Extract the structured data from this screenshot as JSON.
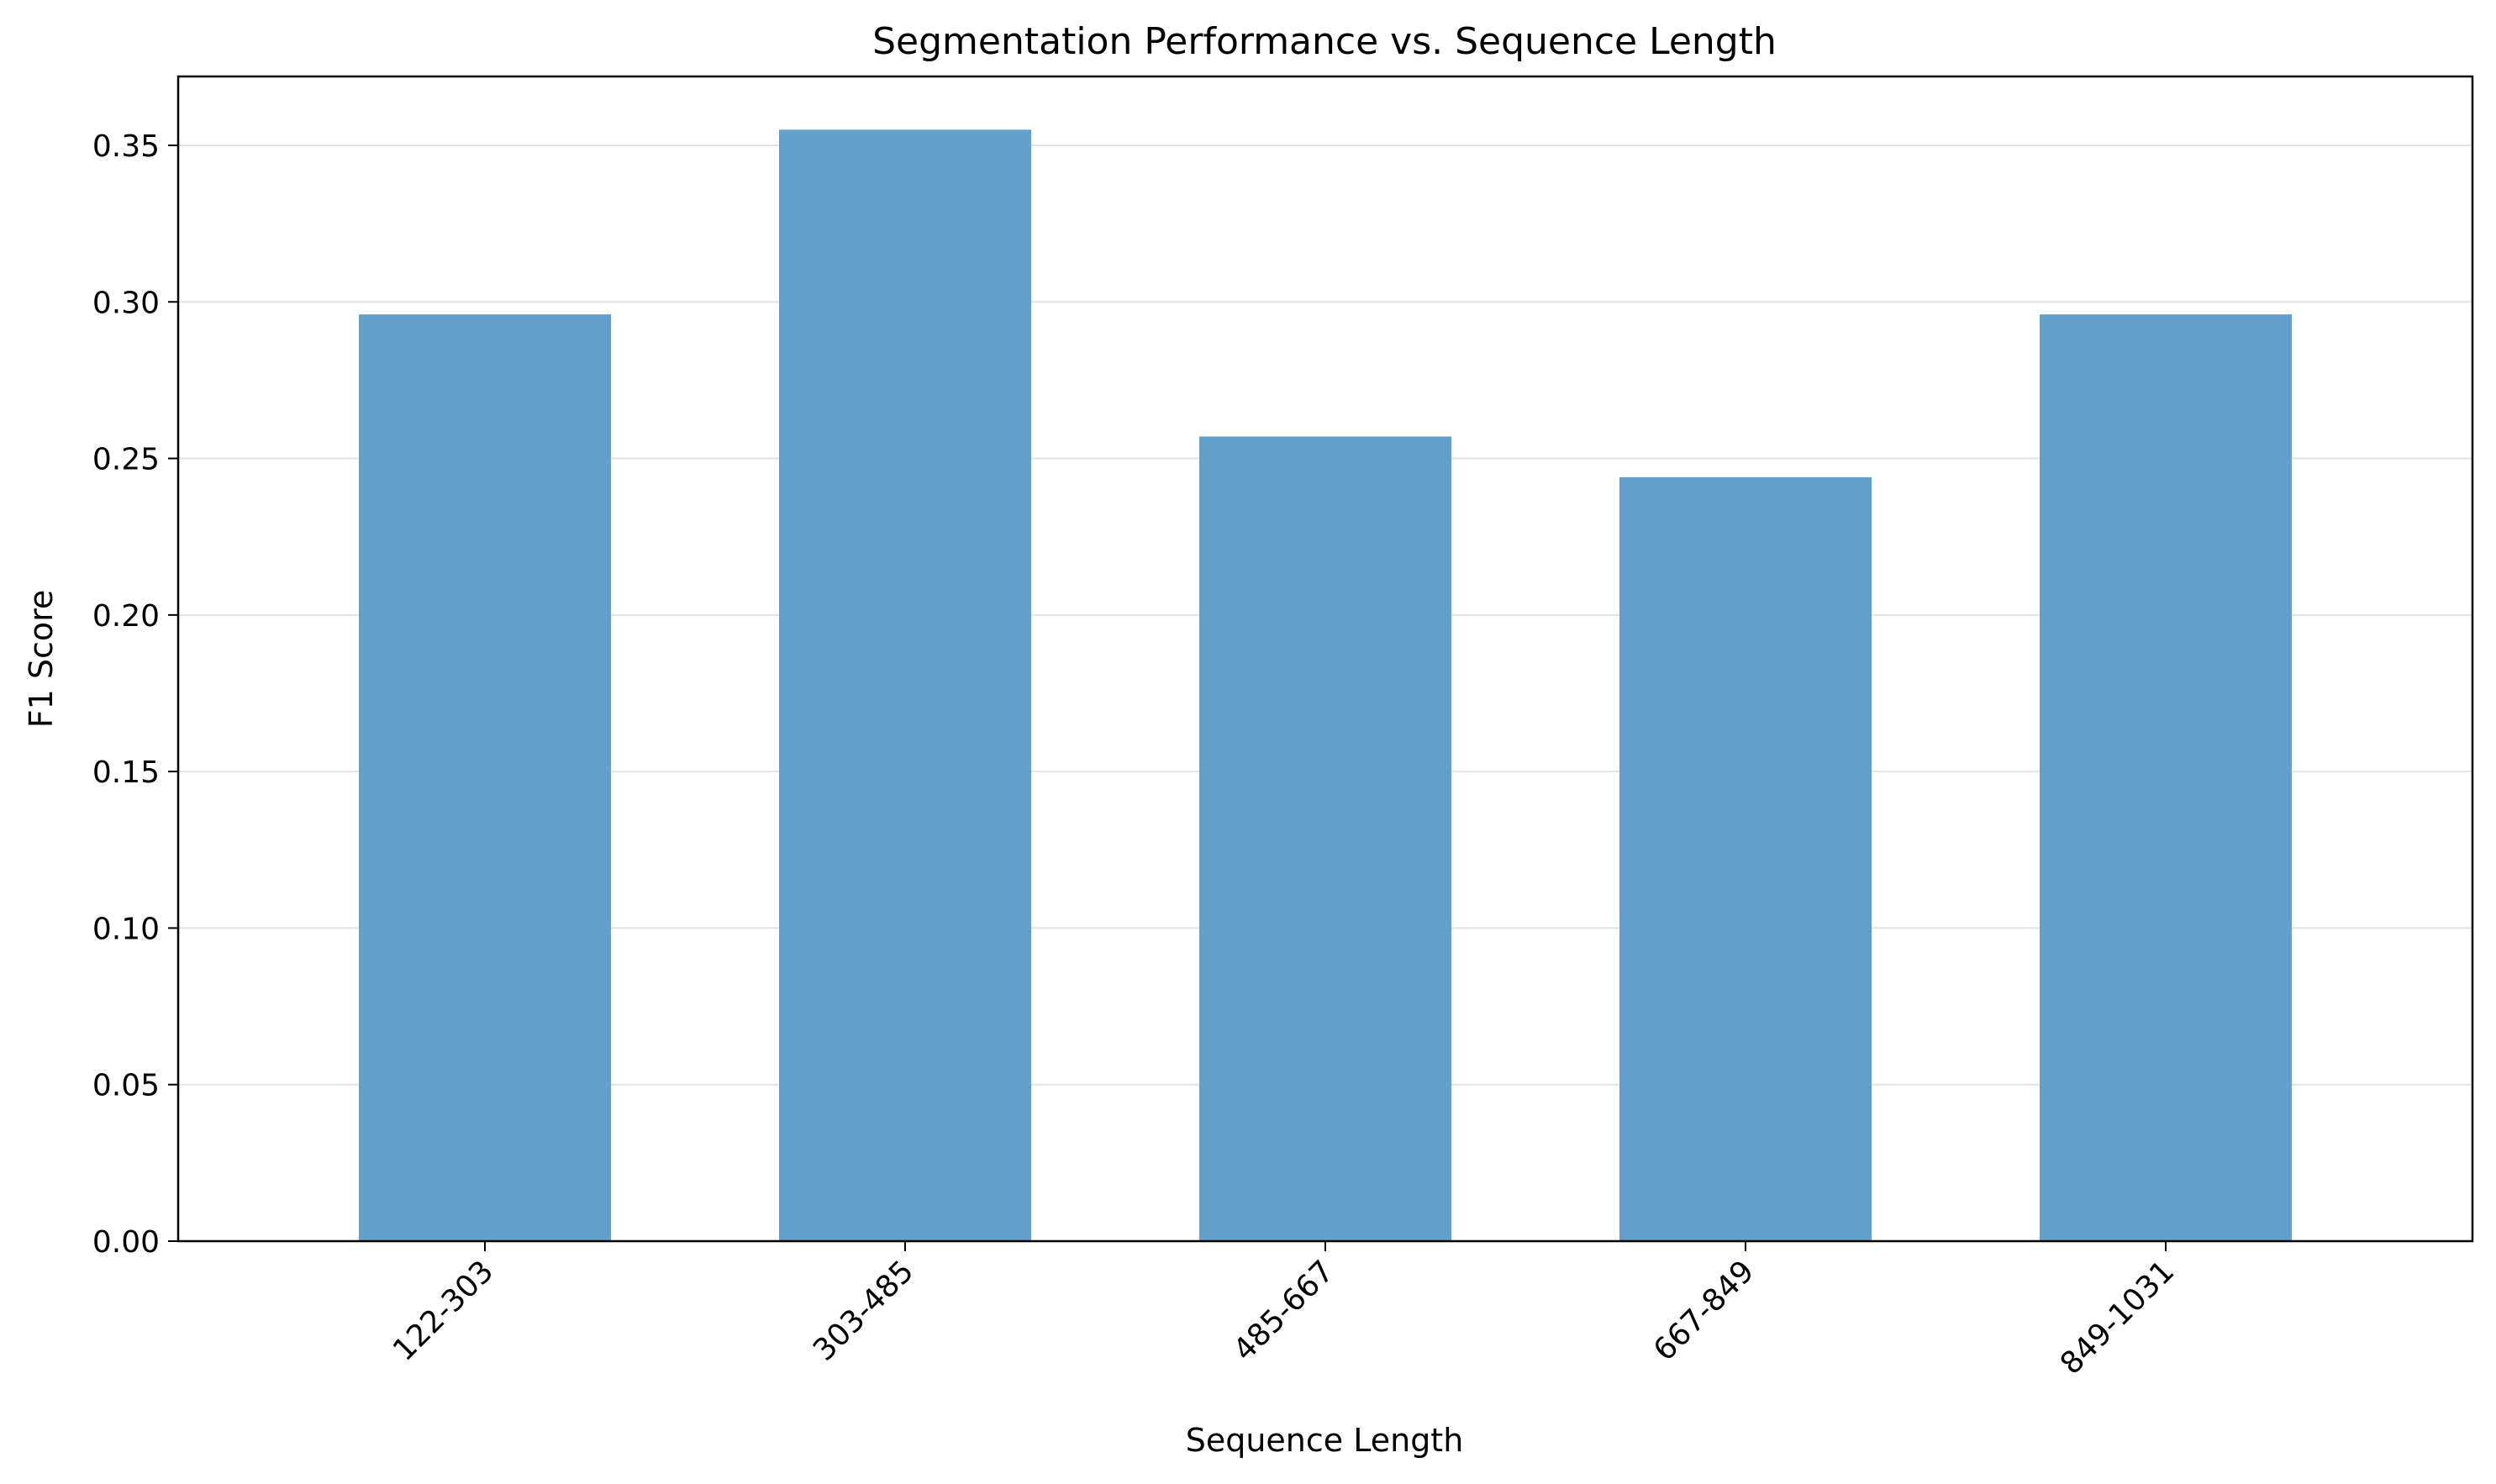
{
  "chart_data": {
    "type": "bar",
    "title": "Segmentation Performance vs. Sequence Length",
    "xlabel": "Sequence Length",
    "ylabel": "F1 Score",
    "categories": [
      "122-303",
      "303-485",
      "485-667",
      "667-849",
      "849-1031"
    ],
    "values": [
      0.296,
      0.355,
      0.257,
      0.244,
      0.296
    ],
    "ylim": [
      0,
      0.372
    ],
    "yticks": [
      0.0,
      0.05,
      0.1,
      0.15,
      0.2,
      0.25,
      0.3,
      0.35
    ],
    "ytick_labels": [
      "0.00",
      "0.05",
      "0.10",
      "0.15",
      "0.20",
      "0.25",
      "0.30",
      "0.35"
    ],
    "grid": "horizontal",
    "legend": "none",
    "bar_color": "#62a0cb"
  }
}
